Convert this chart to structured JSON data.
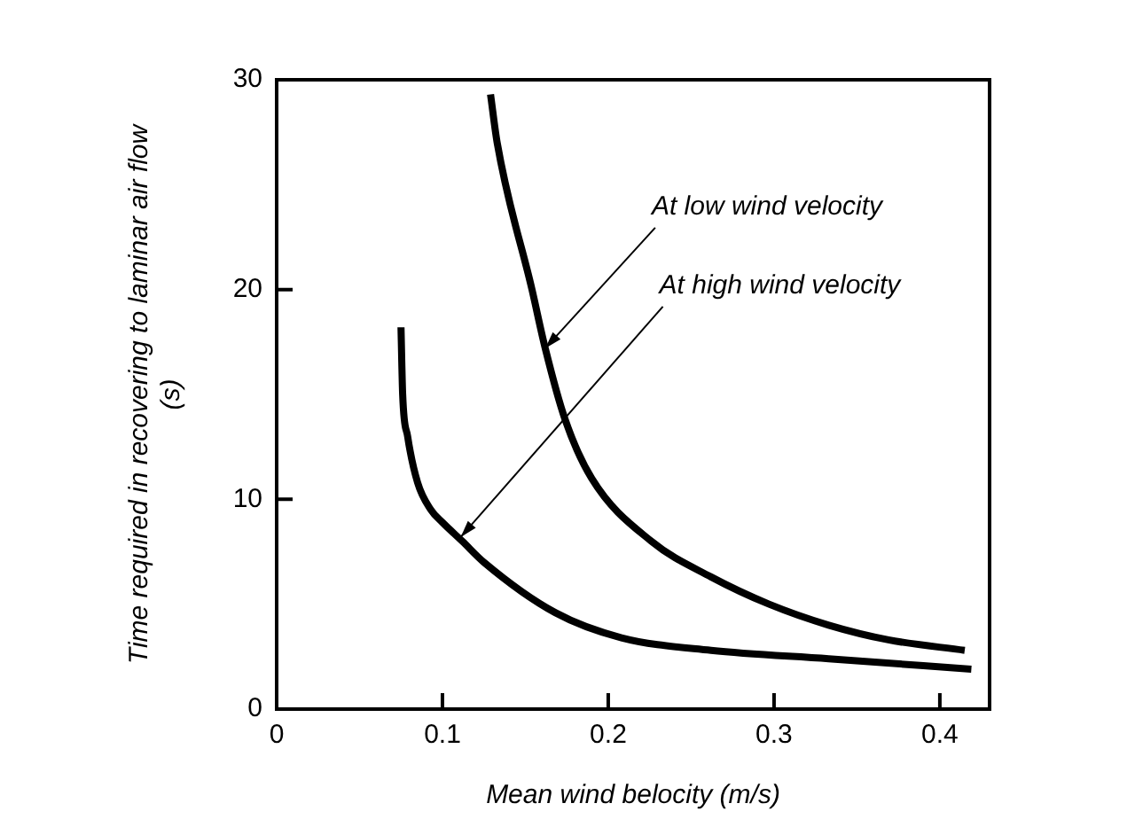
{
  "chart_data": {
    "type": "line",
    "xlabel": "Mean wind belocity (m/s)",
    "ylabel": "Time required in recovering to laminar air flow\n(s)",
    "xlim": [
      0,
      0.43
    ],
    "xticks": [
      0,
      0.1,
      0.2,
      0.3,
      0.4
    ],
    "ylim": [
      0,
      30
    ],
    "yticks": [
      0,
      10,
      20,
      30
    ],
    "grid": false,
    "legend": false,
    "marker": "none",
    "line_style": "solid",
    "series": [
      {
        "color": "#000000",
        "x": [
          0.129,
          0.133,
          0.154,
          0.162,
          0.174,
          0.19,
          0.226,
          0.262,
          0.297,
          0.333,
          0.369,
          0.415
        ],
        "values": [
          29.3,
          27.0,
          20.0,
          17.2,
          13.8,
          11.0,
          8.0,
          6.3,
          5.0,
          4.0,
          3.3,
          2.8
        ]
      },
      {
        "color": "#000000",
        "x": [
          0.075,
          0.076,
          0.079,
          0.085,
          0.093,
          0.1,
          0.112,
          0.125,
          0.168,
          0.208,
          0.262,
          0.333,
          0.419
        ],
        "values": [
          18.2,
          15.0,
          13.0,
          10.8,
          9.5,
          8.9,
          8.0,
          7.0,
          4.6,
          3.4,
          2.8,
          2.4,
          1.9
        ]
      }
    ],
    "annotations": [
      {
        "text": "At low wind velocity",
        "x": 0.162,
        "y": 17.2
      },
      {
        "text": "At high wind velocity",
        "x": 0.111,
        "y": 8.2
      }
    ]
  }
}
